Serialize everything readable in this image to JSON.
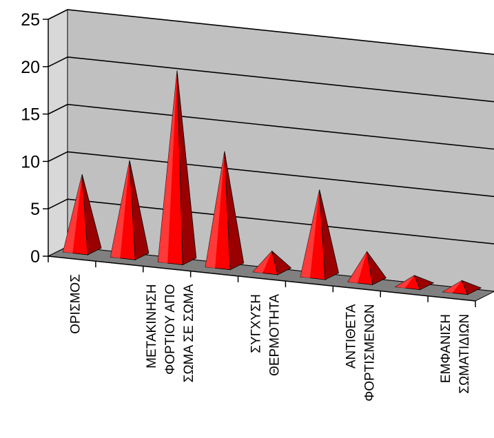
{
  "chart_data": {
    "type": "bar",
    "bar_shape": "3d-pyramid",
    "title": "",
    "xlabel": "",
    "ylabel": "",
    "ylim": [
      0,
      25
    ],
    "yticks": [
      0,
      5,
      10,
      15,
      20,
      25
    ],
    "grid": true,
    "legend": "none",
    "categories": [
      [
        "ΟΡΙΣΜΟΣ"
      ],
      [],
      [
        "ΜΕΤΑΚΙΝΗΣΗ",
        "ΦΟΡΤΙΟΥ ΑΠΟ",
        "ΣΩΜΑ ΣΕ ΣΩΜΑ"
      ],
      [],
      [
        "ΣΥΓΧΥΣΗ",
        "ΘΕΡΜΟΤΗΤΑ"
      ],
      [],
      [
        "ΑΝΤΙΘΕΤΑ",
        "ΦΟΡΤΙΣΜΕΝΩΝ"
      ],
      [],
      [
        "ΕΜΦΑΝΙΣΗ",
        "ΣΩΜΑΤΙΔΙΩΝ"
      ]
    ],
    "values": [
      8,
      10,
      20,
      12,
      2,
      9,
      3,
      1,
      1
    ],
    "colors": {
      "bar_front": "#ff0000",
      "bar_dark": "#9a0000",
      "bar_light": "#ff5050",
      "wall": "#c0c0c0",
      "floor": "#808080",
      "gridline": "#000000"
    }
  }
}
